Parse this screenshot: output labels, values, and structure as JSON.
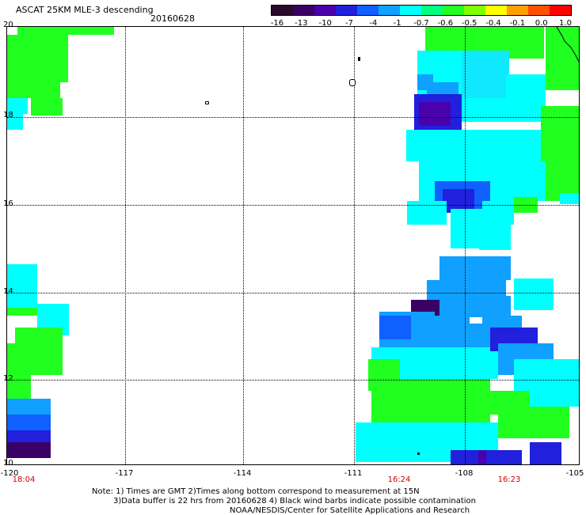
{
  "header": {
    "title": "ASCAT 25KM MLE-3 descending",
    "date": "20160628"
  },
  "colorbar": {
    "colors": [
      "#2a0a2a",
      "#3a0066",
      "#4a00aa",
      "#2020dd",
      "#1060ff",
      "#10a0ff",
      "#00ffff",
      "#00ff80",
      "#20ff20",
      "#80ff00",
      "#ffff00",
      "#ffa000",
      "#ff5000",
      "#ff0000"
    ],
    "labels": [
      "-16",
      "-13",
      "-10",
      "-7",
      "-4",
      "-1",
      "-0.7",
      "-0.6",
      "-0.5",
      "-0.4",
      "-0.1",
      "0.0",
      "1.0"
    ]
  },
  "map": {
    "lat_labels": [
      "20",
      "18",
      "16",
      "14",
      "12",
      "10"
    ],
    "lon_labels": [
      "-120",
      "-117",
      "-114",
      "-111",
      "-108",
      "-105"
    ],
    "time_labels": [
      "18:04",
      "16:24",
      "16:23"
    ]
  },
  "notes": {
    "line1": "Note: 1) Times are GMT 2)Times along bottom correspond to measurement at 15N",
    "line2": "3)Data buffer is 22 hrs from 20160628 4) Black wind barbs indicate possible contamination",
    "line3": "NOAA/NESDIS/Center for Satellite Applications and Research"
  }
}
